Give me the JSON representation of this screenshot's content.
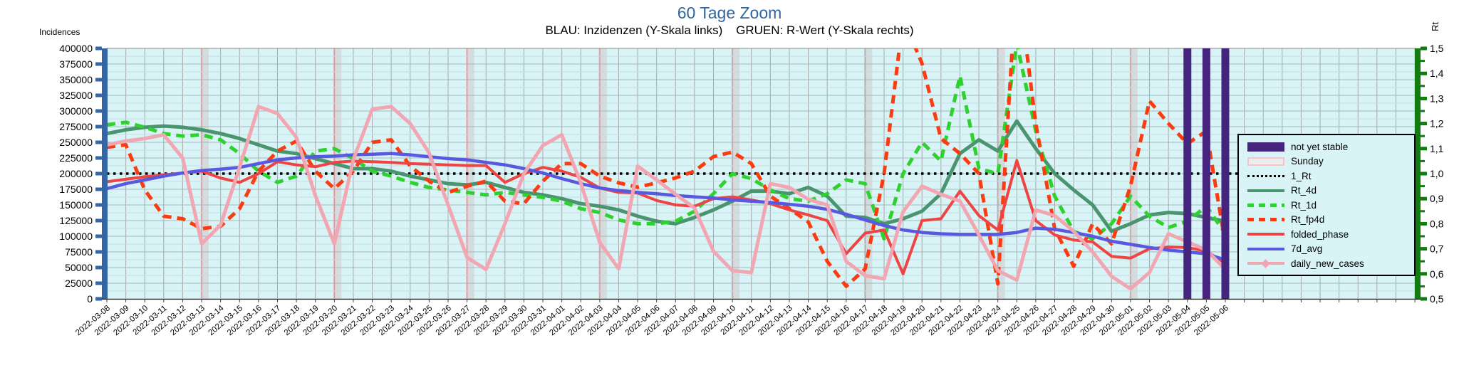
{
  "title": "60 Tage Zoom",
  "subtitle": "BLAU: Inzidenzen (Y-Skala links)    GRUEN: R-Wert (Y-Skala rechts)",
  "chart_data": {
    "type": "line",
    "left_axis": {
      "label": "Incidences",
      "min": 0,
      "max": 400000,
      "tick_step": 25000,
      "axis_color": "#3465a4"
    },
    "right_axis": {
      "label": "Rt",
      "min": 0.5,
      "max": 1.5,
      "tick_step": 0.1,
      "axis_color": "#117d11",
      "tick_labels": [
        "0,5",
        "0,6",
        "0,7",
        "0,8",
        "0,9",
        "1,0",
        "1,1",
        "1,2",
        "1,3",
        "1,4",
        "1,5"
      ]
    },
    "background": "#d9f4f6",
    "grid": true,
    "x": [
      "2022-03-08",
      "2022-03-09",
      "2022-03-10",
      "2022-03-11",
      "2022-03-12",
      "2022-03-13",
      "2022-03-14",
      "2022-03-15",
      "2022-03-16",
      "2022-03-17",
      "2022-03-18",
      "2022-03-19",
      "2022-03-20",
      "2022-03-21",
      "2022-03-22",
      "2022-03-23",
      "2022-03-24",
      "2022-03-25",
      "2022-03-26",
      "2022-03-27",
      "2022-03-28",
      "2022-03-29",
      "2022-03-30",
      "2022-03-31",
      "2022-04-01",
      "2022-04-02",
      "2022-04-03",
      "2022-04-04",
      "2022-04-05",
      "2022-04-06",
      "2022-04-07",
      "2022-04-08",
      "2022-04-09",
      "2022-04-10",
      "2022-04-11",
      "2022-04-12",
      "2022-04-13",
      "2022-04-14",
      "2022-04-15",
      "2022-04-16",
      "2022-04-17",
      "2022-04-18",
      "2022-04-19",
      "2022-04-20",
      "2022-04-21",
      "2022-04-22",
      "2022-04-23",
      "2022-04-24",
      "2022-04-25",
      "2022-04-26",
      "2022-04-27",
      "2022-04-28",
      "2022-04-29",
      "2022-04-30",
      "2022-05-01",
      "2022-05-02",
      "2022-05-03",
      "2022-05-04",
      "2022-05-05",
      "2022-05-06"
    ],
    "sundays": [
      "2022-03-13",
      "2022-03-20",
      "2022-03-27",
      "2022-04-03",
      "2022-04-10",
      "2022-04-17",
      "2022-04-24",
      "2022-05-01"
    ],
    "not_yet_stable": [
      "2022-05-04",
      "2022-05-05",
      "2022-05-06"
    ],
    "series": [
      {
        "name": "1_Rt",
        "axis": "right",
        "dash": "dotted",
        "color": "#000000",
        "constant": 1.0
      },
      {
        "name": "Rt_4d",
        "axis": "right",
        "dash": "solid",
        "color": "#4a9470",
        "values": [
          1.16,
          1.175,
          1.185,
          1.19,
          1.185,
          1.175,
          1.16,
          1.14,
          1.115,
          1.09,
          1.08,
          1.06,
          1.04,
          1.02,
          1.02,
          1.01,
          0.99,
          0.975,
          0.96,
          0.955,
          0.965,
          0.945,
          0.925,
          0.915,
          0.9,
          0.88,
          0.87,
          0.855,
          0.83,
          0.81,
          0.8,
          0.825,
          0.855,
          0.89,
          0.93,
          0.93,
          0.92,
          0.945,
          0.91,
          0.83,
          0.825,
          0.8,
          0.82,
          0.85,
          0.92,
          1.08,
          1.135,
          1.09,
          1.21,
          1.1,
          1.0,
          0.935,
          0.875,
          0.77,
          0.8,
          0.835,
          0.845,
          0.84,
          0.825,
          0.81
        ]
      },
      {
        "name": "Rt_1d",
        "axis": "right",
        "dash": "dashed",
        "color": "#2ed22e",
        "values": [
          1.195,
          1.205,
          1.185,
          1.16,
          1.15,
          1.155,
          1.135,
          1.08,
          1.01,
          0.965,
          0.99,
          1.09,
          1.1,
          1.06,
          1.01,
          0.99,
          0.965,
          0.945,
          0.935,
          0.925,
          0.915,
          0.925,
          0.915,
          0.905,
          0.89,
          0.86,
          0.845,
          0.815,
          0.8,
          0.8,
          0.81,
          0.85,
          0.92,
          1.0,
          0.98,
          0.935,
          0.9,
          0.89,
          0.92,
          0.975,
          0.96,
          0.74,
          1.0,
          1.125,
          1.05,
          1.39,
          1.02,
          1.0,
          1.52,
          1.17,
          0.91,
          0.77,
          0.74,
          0.8,
          0.91,
          0.83,
          0.785,
          0.81,
          0.87,
          0.76
        ]
      },
      {
        "name": "Rt_fp4d",
        "axis": "right",
        "dash": "dashed",
        "color": "#fb3c11",
        "values": [
          1.105,
          1.115,
          0.935,
          0.83,
          0.82,
          0.78,
          0.79,
          0.86,
          1.01,
          1.09,
          1.13,
          1.01,
          0.94,
          1.01,
          1.125,
          1.135,
          1.03,
          0.97,
          0.925,
          0.95,
          0.97,
          0.89,
          0.88,
          0.97,
          1.04,
          1.04,
          0.99,
          0.963,
          0.946,
          0.963,
          0.983,
          1.01,
          1.068,
          1.086,
          1.04,
          0.91,
          0.86,
          0.807,
          0.65,
          0.55,
          0.62,
          1.0,
          1.62,
          1.44,
          1.14,
          1.08,
          1.0,
          0.56,
          1.8,
          1.2,
          0.78,
          0.63,
          0.8,
          0.72,
          0.95,
          1.29,
          1.2,
          1.12,
          1.17,
          0.72
        ]
      },
      {
        "name": "folded_phase",
        "axis": "left",
        "dash": "solid",
        "color": "#ee4444",
        "values": [
          187000,
          191000,
          195000,
          198000,
          201000,
          204000,
          193000,
          186000,
          200000,
          219000,
          214000,
          211000,
          218000,
          220000,
          219000,
          218000,
          216000,
          215000,
          214000,
          213000,
          213000,
          186000,
          200000,
          210000,
          204000,
          194000,
          177000,
          170000,
          169000,
          157000,
          150000,
          148000,
          160000,
          163000,
          158000,
          152000,
          142000,
          134000,
          125000,
          72000,
          105000,
          110000,
          40000,
          125000,
          128000,
          172000,
          133000,
          110000,
          221000,
          125000,
          102000,
          94000,
          91000,
          68000,
          65000,
          80000,
          83000,
          82000,
          76000,
          57000
        ]
      },
      {
        "name": "7d_avg",
        "axis": "left",
        "dash": "solid",
        "color": "#5858e0",
        "values": [
          176000,
          184000,
          190000,
          196000,
          201000,
          205000,
          207000,
          210000,
          216000,
          222000,
          225000,
          227000,
          228000,
          230000,
          231000,
          232000,
          230000,
          227000,
          224000,
          222000,
          218000,
          214000,
          208000,
          201000,
          192000,
          184000,
          177000,
          173000,
          170000,
          168000,
          165000,
          163000,
          161000,
          158000,
          156000,
          154000,
          151000,
          148000,
          143000,
          135000,
          126000,
          117000,
          110000,
          106000,
          104000,
          103000,
          103000,
          103000,
          106000,
          113000,
          111000,
          106000,
          100000,
          92000,
          87000,
          82000,
          78000,
          75000,
          72000,
          62000
        ]
      },
      {
        "name": "daily_new_cases",
        "axis": "left",
        "dash": "solid",
        "color": "#f2a6b2",
        "marker": "diamond",
        "values": [
          246000,
          252000,
          256000,
          262000,
          225000,
          88000,
          118000,
          210000,
          307000,
          296000,
          258000,
          165000,
          88000,
          222000,
          303000,
          307000,
          280000,
          233000,
          150000,
          66000,
          47000,
          120000,
          200000,
          245000,
          262000,
          185000,
          90000,
          48000,
          212000,
          190000,
          167000,
          145000,
          76000,
          45000,
          42000,
          184000,
          178000,
          159000,
          150000,
          60000,
          37000,
          32000,
          139000,
          180000,
          167000,
          156000,
          102000,
          45000,
          30000,
          142000,
          133000,
          108000,
          75000,
          36000,
          16000,
          42000,
          104000,
          91000,
          78000,
          47000
        ]
      }
    ]
  },
  "legend": {
    "items": [
      {
        "label": "not yet stable",
        "swatch": "block",
        "color": "#44247c"
      },
      {
        "label": "Sunday",
        "swatch": "box",
        "color": "#f7c3c9",
        "fill": "#ececec"
      },
      {
        "label": "1_Rt",
        "swatch": "dotted",
        "color": "#000000"
      },
      {
        "label": "Rt_4d",
        "swatch": "line",
        "color": "#4a9470"
      },
      {
        "label": "Rt_1d",
        "swatch": "dashed",
        "color": "#2ed22e"
      },
      {
        "label": "Rt_fp4d",
        "swatch": "dashed",
        "color": "#fb3c11"
      },
      {
        "label": "folded_phase",
        "swatch": "line",
        "color": "#ee4444"
      },
      {
        "label": "7d_avg",
        "swatch": "line",
        "color": "#5858e0"
      },
      {
        "label": "daily_new_cases",
        "swatch": "line-diamond",
        "color": "#f2a6b2"
      }
    ]
  }
}
